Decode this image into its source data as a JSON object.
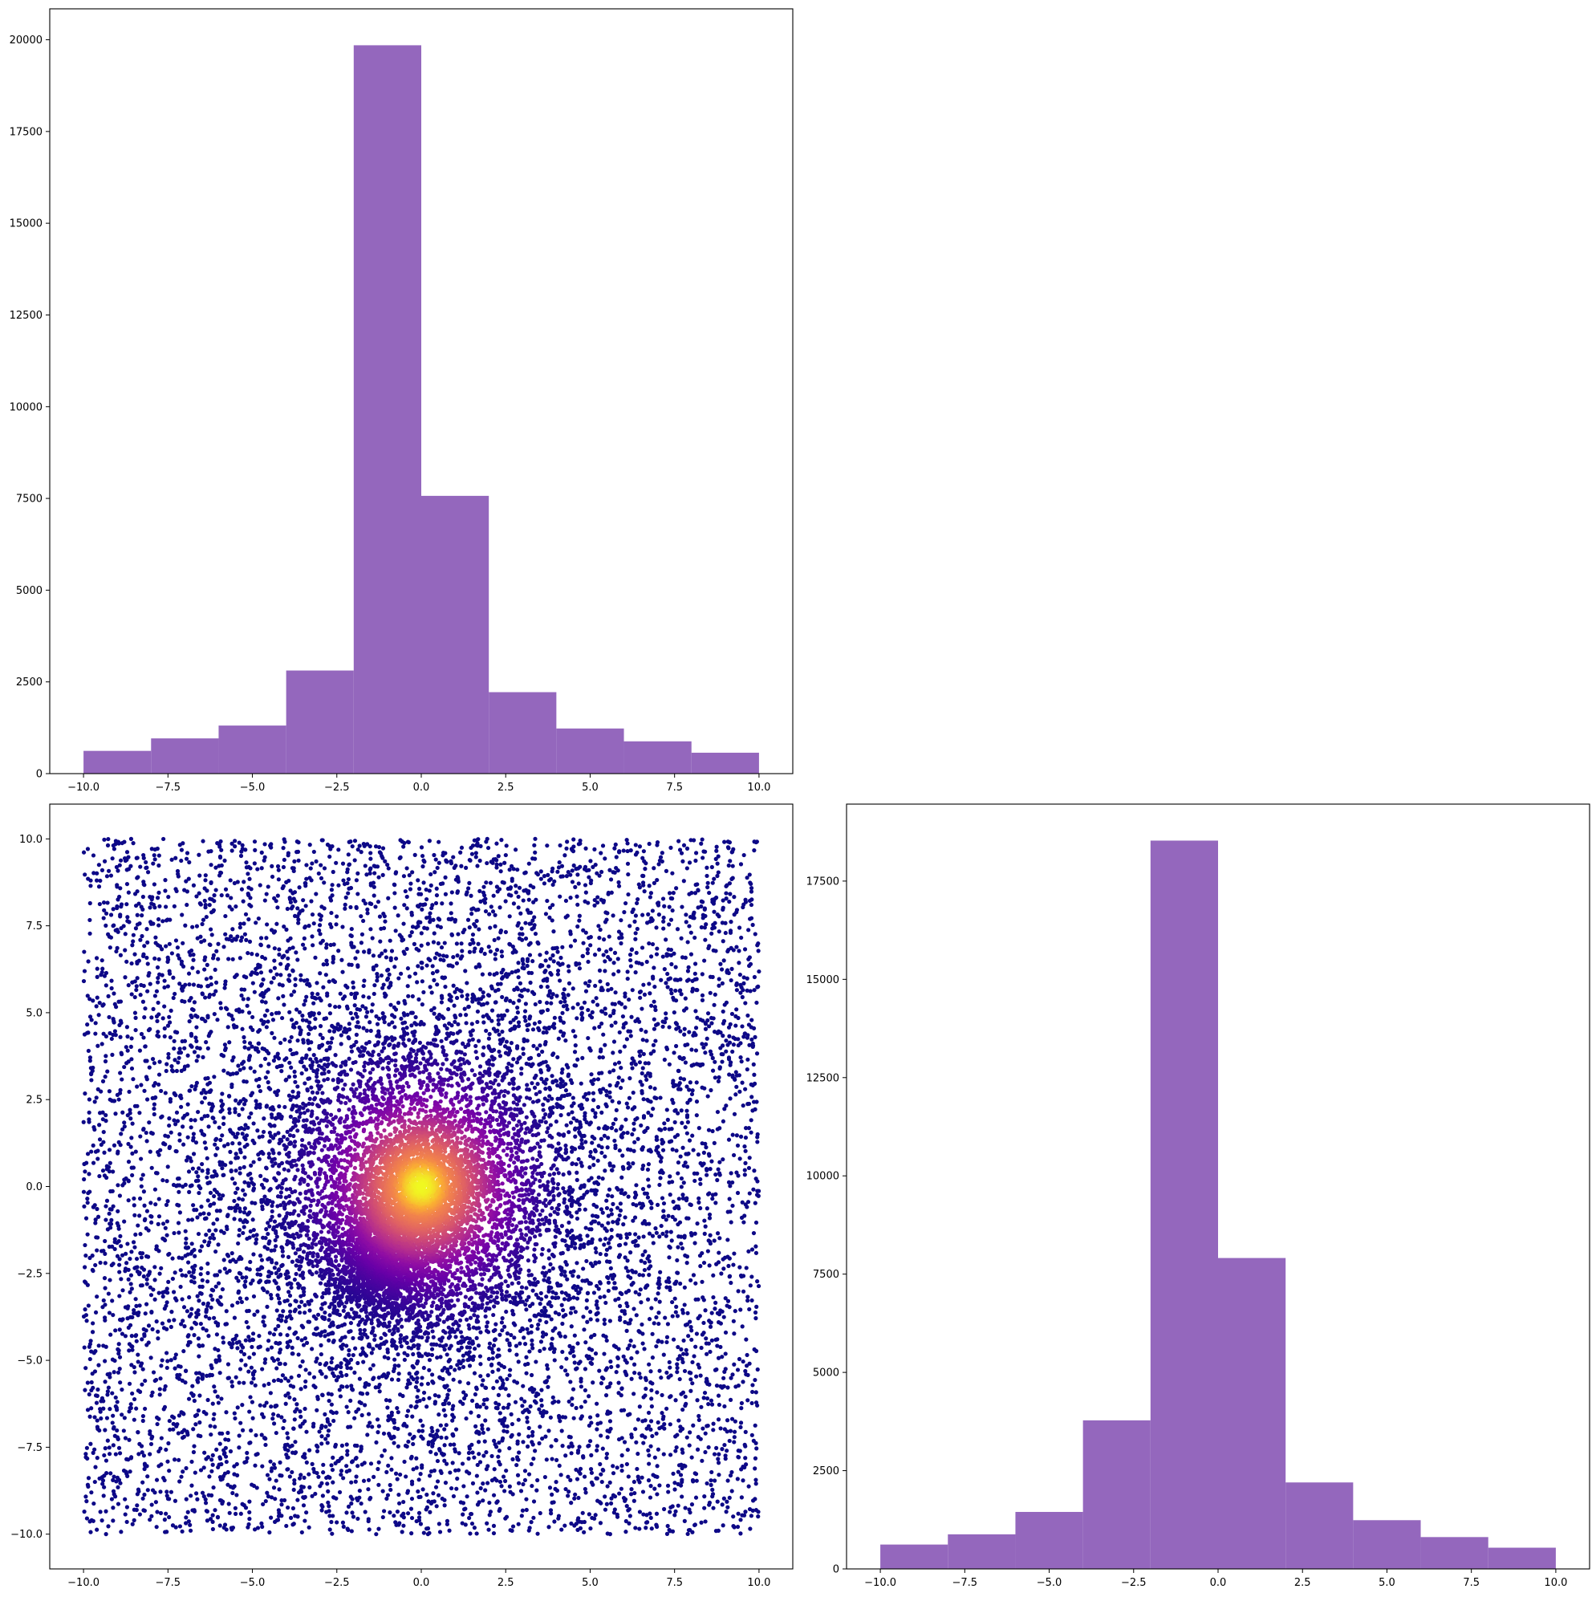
{
  "chart_data": [
    {
      "type": "bar",
      "subtype": "histogram",
      "panel": "top-left",
      "bin_edges": [
        -10,
        -8,
        -6,
        -4,
        -2,
        0,
        2,
        4,
        6,
        8,
        10
      ],
      "values": [
        620,
        960,
        1310,
        2810,
        19850,
        7570,
        2220,
        1230,
        880,
        570
      ],
      "xlim": [
        -11,
        11
      ],
      "ylim": [
        0,
        20843
      ],
      "xticks": [
        -10,
        -7.5,
        -5,
        -2.5,
        0,
        2.5,
        5,
        7.5,
        10
      ],
      "xtick_labels": [
        "−10.0",
        "−7.5",
        "−5.0",
        "−2.5",
        "0.0",
        "2.5",
        "5.0",
        "7.5",
        "10.0"
      ],
      "yticks": [
        0,
        2500,
        5000,
        7500,
        10000,
        12500,
        15000,
        17500,
        20000
      ],
      "ytick_labels": [
        "0",
        "2500",
        "5000",
        "7500",
        "10000",
        "12500",
        "15000",
        "17500",
        "20000"
      ],
      "color": "#9467bd",
      "grid": false
    },
    {
      "type": "scatter",
      "panel": "bottom-left",
      "colormap": "plasma",
      "n_points": 15000,
      "x_range": [
        -10,
        10
      ],
      "y_range": [
        -10,
        10
      ],
      "dense_core_center": [
        0,
        0
      ],
      "dense_core_radius": 1.6,
      "secondary_cluster_center": [
        -1,
        -2
      ],
      "xlim": [
        -11,
        11
      ],
      "ylim": [
        -11,
        11
      ],
      "xticks": [
        -10,
        -7.5,
        -5,
        -2.5,
        0,
        2.5,
        5,
        7.5,
        10
      ],
      "xtick_labels": [
        "−10.0",
        "−7.5",
        "−5.0",
        "−2.5",
        "0.0",
        "2.5",
        "5.0",
        "7.5",
        "10.0"
      ],
      "yticks": [
        -10,
        -7.5,
        -5,
        -2.5,
        0,
        2.5,
        5,
        7.5,
        10
      ],
      "ytick_labels": [
        "−10.0",
        "−7.5",
        "−5.0",
        "−2.5",
        "0.0",
        "2.5",
        "5.0",
        "7.5",
        "10.0"
      ],
      "grid": false
    },
    {
      "type": "bar",
      "subtype": "histogram",
      "panel": "bottom-right",
      "bin_edges": [
        -10,
        -8,
        -6,
        -4,
        -2,
        0,
        2,
        4,
        6,
        8,
        10
      ],
      "values": [
        620,
        880,
        1450,
        3780,
        18530,
        7910,
        2200,
        1240,
        810,
        540
      ],
      "xlim": [
        -11,
        11
      ],
      "ylim": [
        0,
        19458
      ],
      "xticks": [
        -10,
        -7.5,
        -5,
        -2.5,
        0,
        2.5,
        5,
        7.5,
        10
      ],
      "xtick_labels": [
        "−10.0",
        "−7.5",
        "−5.0",
        "−2.5",
        "0.0",
        "2.5",
        "5.0",
        "7.5",
        "10.0"
      ],
      "yticks": [
        0,
        2500,
        5000,
        7500,
        10000,
        12500,
        15000,
        17500
      ],
      "ytick_labels": [
        "0",
        "2500",
        "5000",
        "7500",
        "10000",
        "12500",
        "15000",
        "17500"
      ],
      "color": "#9467bd",
      "grid": false
    }
  ]
}
